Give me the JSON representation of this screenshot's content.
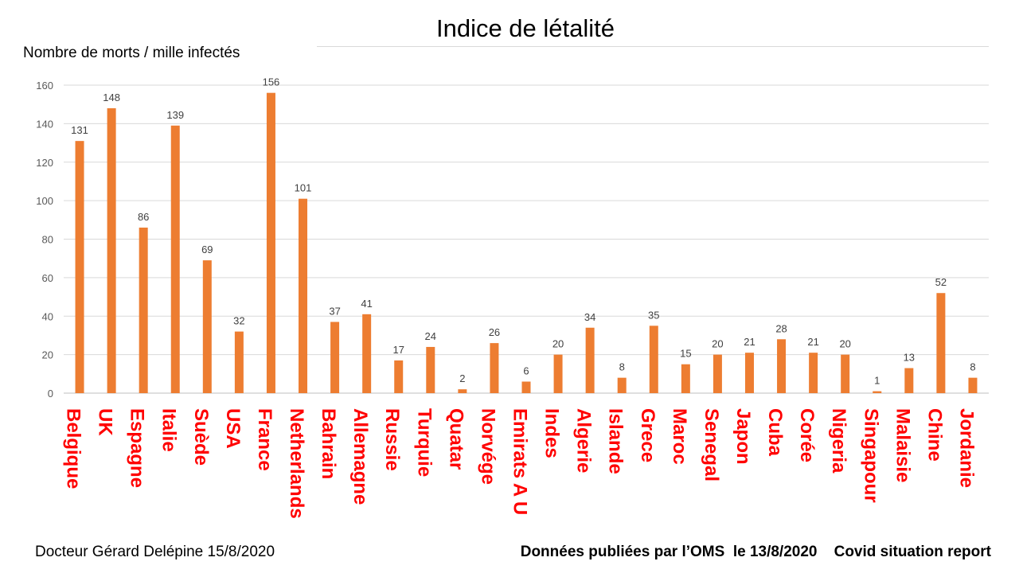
{
  "chart_data": {
    "type": "bar",
    "title": "Indice de létalité",
    "ylabel": "Nombre de morts / mille infectés",
    "xlabel": "",
    "ylim": [
      0,
      160
    ],
    "yticks": [
      0,
      20,
      40,
      60,
      80,
      100,
      120,
      140,
      160
    ],
    "grid": true,
    "legend": "none",
    "categories": [
      "Belgique",
      "UK",
      "Espagne",
      "Italie",
      "Suède",
      "USA",
      "France",
      "Netherlands",
      "Bahrain",
      "Allemagne",
      "Russie",
      "Turquie",
      "Quatar",
      "Norvége",
      "Emirats A U",
      "Indes",
      "Algerie",
      "Islande",
      "Grece",
      "Maroc",
      "Senegal",
      "Japon",
      "Cuba",
      "Corée",
      "Nigeria",
      "Singapour",
      "Malaisie",
      "Chine",
      "Jordanie"
    ],
    "series": [
      {
        "values": [
          131,
          148,
          86,
          139,
          69,
          32,
          156,
          101,
          37,
          41,
          17,
          24,
          2,
          26,
          6,
          20,
          34,
          8,
          35,
          15,
          20,
          21,
          28,
          21,
          20,
          1,
          13,
          52,
          8
        ]
      }
    ],
    "colors": {
      "bar": "#ED7D31",
      "category_text": "#FF0000",
      "grid": "#D9D9D9"
    }
  },
  "footer": {
    "left": "Docteur Gérard Delépine 15/8/2020",
    "right": "Données publiées par l’OMS  le 13/8/2020    Covid situation report"
  }
}
